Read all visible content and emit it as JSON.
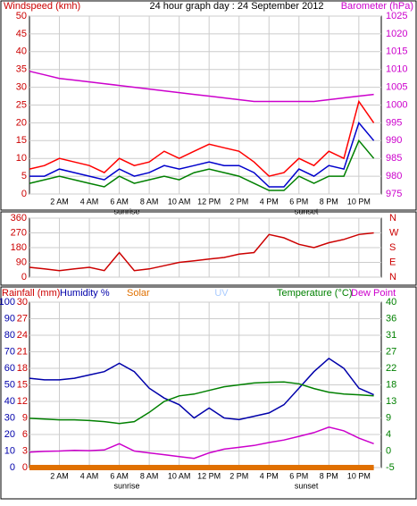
{
  "chart_data": [
    {
      "type": "line",
      "title": "24 hour graph day : 24 September 2012",
      "ylabel": "Windspeed (kmh)",
      "y2label": "Barometer (hPa)",
      "xlim": [
        0,
        23.5
      ],
      "xticks": [
        {
          "value": 2,
          "label": "2 AM"
        },
        {
          "value": 4,
          "label": "4 AM"
        },
        {
          "value": 6,
          "label": "6 AM"
        },
        {
          "value": 8,
          "label": "8 AM"
        },
        {
          "value": 10,
          "label": "10 AM"
        },
        {
          "value": 12,
          "label": "12 PM"
        },
        {
          "value": 14,
          "label": "2 PM"
        },
        {
          "value": 16,
          "label": "4 PM"
        },
        {
          "value": 18,
          "label": "6 PM"
        },
        {
          "value": 20,
          "label": "8 PM"
        },
        {
          "value": 22,
          "label": "10 PM"
        }
      ],
      "annotations": [
        {
          "x": 6.5,
          "text": "sunrise"
        },
        {
          "x": 18.5,
          "text": "sunset"
        }
      ],
      "ylim": [
        0,
        50
      ],
      "yticks": [
        0,
        5,
        10,
        15,
        20,
        25,
        30,
        35,
        40,
        45,
        50
      ],
      "y2lim": [
        975,
        1025
      ],
      "y2ticks": [
        975,
        980,
        985,
        990,
        995,
        1000,
        1005,
        1010,
        1015,
        1020,
        1025
      ],
      "x": [
        0,
        1,
        2,
        3,
        4,
        5,
        6,
        7,
        8,
        9,
        10,
        11,
        12,
        13,
        14,
        15,
        16,
        17,
        18,
        19,
        20,
        21,
        22,
        23
      ],
      "series": [
        {
          "color": "#cc00cc",
          "axis": "y2",
          "values": [
            1009.5,
            1008.5,
            1007.5,
            1007,
            1006.5,
            1006,
            1005.5,
            1005,
            1004.5,
            1004,
            1003.5,
            1003,
            1002.5,
            1002,
            1001.5,
            1001,
            1001,
            1001,
            1001,
            1001,
            1001.5,
            1002,
            1002.5,
            1003
          ]
        },
        {
          "color": "#ff0000",
          "values": [
            7,
            8,
            10,
            9,
            8,
            6,
            10,
            8,
            9,
            12,
            10,
            12,
            14,
            13,
            12,
            9,
            5,
            6,
            10,
            8,
            12,
            10,
            26,
            20
          ]
        },
        {
          "color": "#008000",
          "values": [
            3,
            4,
            5,
            4,
            3,
            2,
            5,
            3,
            4,
            5,
            4,
            6,
            7,
            6,
            5,
            3,
            1,
            1,
            5,
            3,
            5,
            5,
            15,
            10
          ]
        },
        {
          "color": "#0000cc",
          "values": [
            5,
            5,
            7,
            6,
            5,
            4,
            7,
            5,
            6,
            8,
            7,
            8,
            9,
            8,
            8,
            6,
            2,
            2,
            7,
            5,
            8,
            7,
            20,
            15
          ]
        }
      ]
    },
    {
      "type": "line",
      "xlim": [
        0,
        23.5
      ],
      "xticks": [
        2,
        4,
        6,
        8,
        10,
        12,
        14,
        16,
        18,
        20,
        22
      ],
      "ylim": [
        0,
        360
      ],
      "yticks": [
        0,
        90,
        180,
        270,
        360
      ],
      "y2ticks": [
        {
          "value": 0,
          "label": "N"
        },
        {
          "value": 90,
          "label": "E"
        },
        {
          "value": 180,
          "label": "S"
        },
        {
          "value": 270,
          "label": "W"
        },
        {
          "value": 360,
          "label": "N"
        }
      ],
      "x": [
        0,
        1,
        2,
        3,
        4,
        5,
        6,
        7,
        8,
        9,
        10,
        11,
        12,
        13,
        14,
        15,
        16,
        17,
        18,
        19,
        20,
        21,
        22,
        23
      ],
      "series": [
        {
          "color": "#cc0000",
          "values": [
            60,
            50,
            40,
            50,
            60,
            40,
            150,
            40,
            50,
            70,
            90,
            100,
            110,
            120,
            140,
            150,
            260,
            240,
            200,
            180,
            210,
            230,
            260,
            270
          ]
        }
      ]
    },
    {
      "type": "line",
      "uv_label": "UV",
      "xlim": [
        0,
        23.5
      ],
      "xticks": [
        {
          "value": 2,
          "label": "2 AM"
        },
        {
          "value": 4,
          "label": "4 AM"
        },
        {
          "value": 6,
          "label": "6 AM"
        },
        {
          "value": 8,
          "label": "8 AM"
        },
        {
          "value": 10,
          "label": "10 AM"
        },
        {
          "value": 12,
          "label": "12 PM"
        },
        {
          "value": 14,
          "label": "2 PM"
        },
        {
          "value": 16,
          "label": "4 PM"
        },
        {
          "value": 18,
          "label": "6 PM"
        },
        {
          "value": 20,
          "label": "8 PM"
        },
        {
          "value": 22,
          "label": "10 PM"
        }
      ],
      "annotations": [
        {
          "x": 6.5,
          "text": "sunrise"
        },
        {
          "x": 18.5,
          "text": "sunset"
        }
      ],
      "ylim": [
        0,
        100
      ],
      "yticks": [
        0,
        10,
        20,
        30,
        40,
        50,
        60,
        70,
        80,
        90,
        100
      ],
      "y3lim": [
        0,
        30
      ],
      "y3ticks": [
        0,
        3,
        6,
        9,
        12,
        15,
        18,
        21,
        24,
        27,
        30
      ],
      "y2lim": [
        -5,
        40
      ],
      "y2ticks": [
        -5,
        {
          "value": -0.5,
          "label": "0"
        },
        4,
        {
          "value": 8.5,
          "label": "9"
        },
        13,
        {
          "value": 17.5,
          "label": "18"
        },
        22,
        {
          "value": 26.5,
          "label": "27"
        },
        31,
        {
          "value": 35.5,
          "label": "36"
        },
        40
      ],
      "x": [
        0,
        1,
        2,
        3,
        4,
        5,
        6,
        7,
        8,
        9,
        10,
        11,
        12,
        13,
        14,
        15,
        16,
        17,
        18,
        19,
        20,
        21,
        22,
        23
      ],
      "series": [
        {
          "name": "Rainfall (mm)",
          "color": "#cc0000",
          "axis": "y3",
          "values": [
            0,
            0,
            0,
            0,
            0,
            0,
            0,
            0,
            0,
            0,
            0,
            0,
            0,
            0,
            0,
            0,
            0,
            0,
            0,
            0,
            0,
            0,
            0,
            0
          ]
        },
        {
          "name": "Humidity %",
          "color": "#0000aa",
          "values": [
            54,
            53,
            53,
            54,
            56,
            58,
            63,
            58,
            48,
            42,
            38,
            30,
            36,
            30,
            29,
            31,
            33,
            38,
            48,
            58,
            66,
            60,
            48,
            44
          ]
        },
        {
          "name": "Solar",
          "color": "#e07000",
          "axis": "y3",
          "values": [
            0,
            0,
            0,
            0,
            0,
            0,
            0,
            0,
            0,
            0,
            0,
            0,
            0,
            0,
            0,
            0,
            0,
            0,
            0,
            0,
            0,
            0,
            0,
            0
          ]
        },
        {
          "name": "Temperature (°C)",
          "color": "#008000",
          "axis": "y2",
          "values": [
            8.4,
            8.2,
            8,
            8,
            7.8,
            7.5,
            7,
            7.5,
            10,
            13,
            14.5,
            15,
            16,
            17,
            17.5,
            18,
            18.2,
            18.3,
            17.8,
            16.5,
            15.5,
            15,
            14.8,
            14.5
          ]
        },
        {
          "name": "Dew Point",
          "color": "#cc00cc",
          "axis": "y2",
          "values": [
            -0.8,
            -0.6,
            -0.5,
            -0.3,
            -0.4,
            -0.2,
            1.5,
            -0.5,
            -1,
            -1.5,
            -2,
            -2.5,
            -1,
            0,
            0.5,
            1,
            1.8,
            2.5,
            3.5,
            4.5,
            6,
            5,
            3,
            1.5
          ]
        }
      ]
    }
  ]
}
